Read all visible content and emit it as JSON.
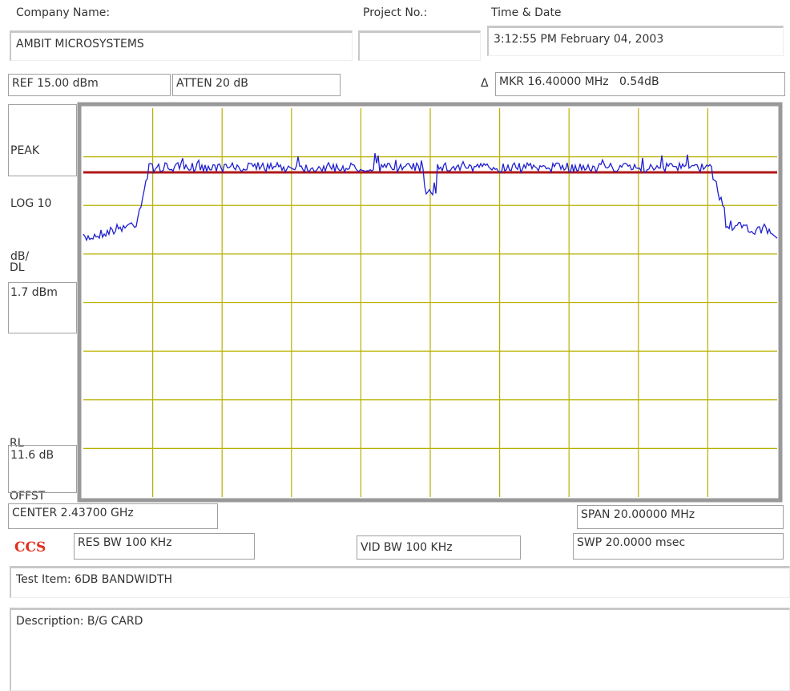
{
  "header": {
    "company_label": "Company Name:",
    "company": "AMBIT MICROSYSTEMS",
    "project_label": "Project No.:",
    "time_label": "Time & Date",
    "time": "3:12:55 PM February 04, 2003"
  },
  "settings": {
    "ref": "REF 15.00 dBm",
    "atten": "ATTEN 20 dB",
    "delta": "Δ",
    "marker": "MKR 16.40000 MHz   0.54dB",
    "mode": [
      "PEAK",
      "LOG 10",
      "dB/"
    ],
    "dl_label": "DL",
    "dl": "1.7 dBm",
    "rl_label": [
      "RL",
      "OFFST"
    ],
    "rl": "11.6 dB",
    "center": "CENTER 2.43700 GHz",
    "span": "SPAN 20.00000 MHz",
    "logo": "CCS",
    "res_bw": "RES BW 100 KHz",
    "vid_bw": "VID BW 100 KHz",
    "sweep": "SWP 20.0000 msec"
  },
  "footer": {
    "test_item": "Test Item: 6DB BANDWIDTH",
    "description": "Description: B/G CARD"
  }
}
